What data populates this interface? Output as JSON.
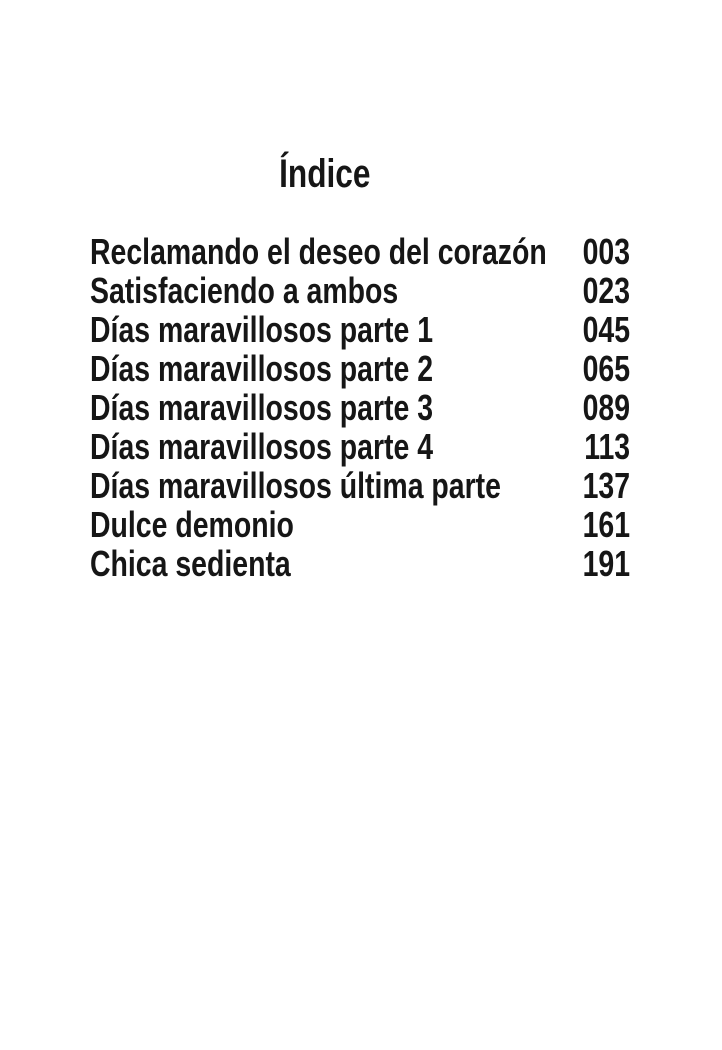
{
  "theme": {
    "page-bg": "#ffffff",
    "text-color": "#161616"
  },
  "page": {
    "title": "Índice",
    "toc": {
      "items": [
        {
          "title": "Reclamando el deseo del corazón",
          "page": "003"
        },
        {
          "title": "Satisfaciendo a ambos",
          "page": "023"
        },
        {
          "title": "Días maravillosos parte 1",
          "page": "045"
        },
        {
          "title": "Días maravillosos parte 2",
          "page": "065"
        },
        {
          "title": "Días maravillosos parte 3",
          "page": "089"
        },
        {
          "title": "Días maravillosos parte 4",
          "page": "113"
        },
        {
          "title": "Días maravillosos última parte",
          "page": "137"
        },
        {
          "title": "Dulce demonio",
          "page": "161"
        },
        {
          "title": "Chica sedienta",
          "page": "191"
        }
      ]
    }
  }
}
